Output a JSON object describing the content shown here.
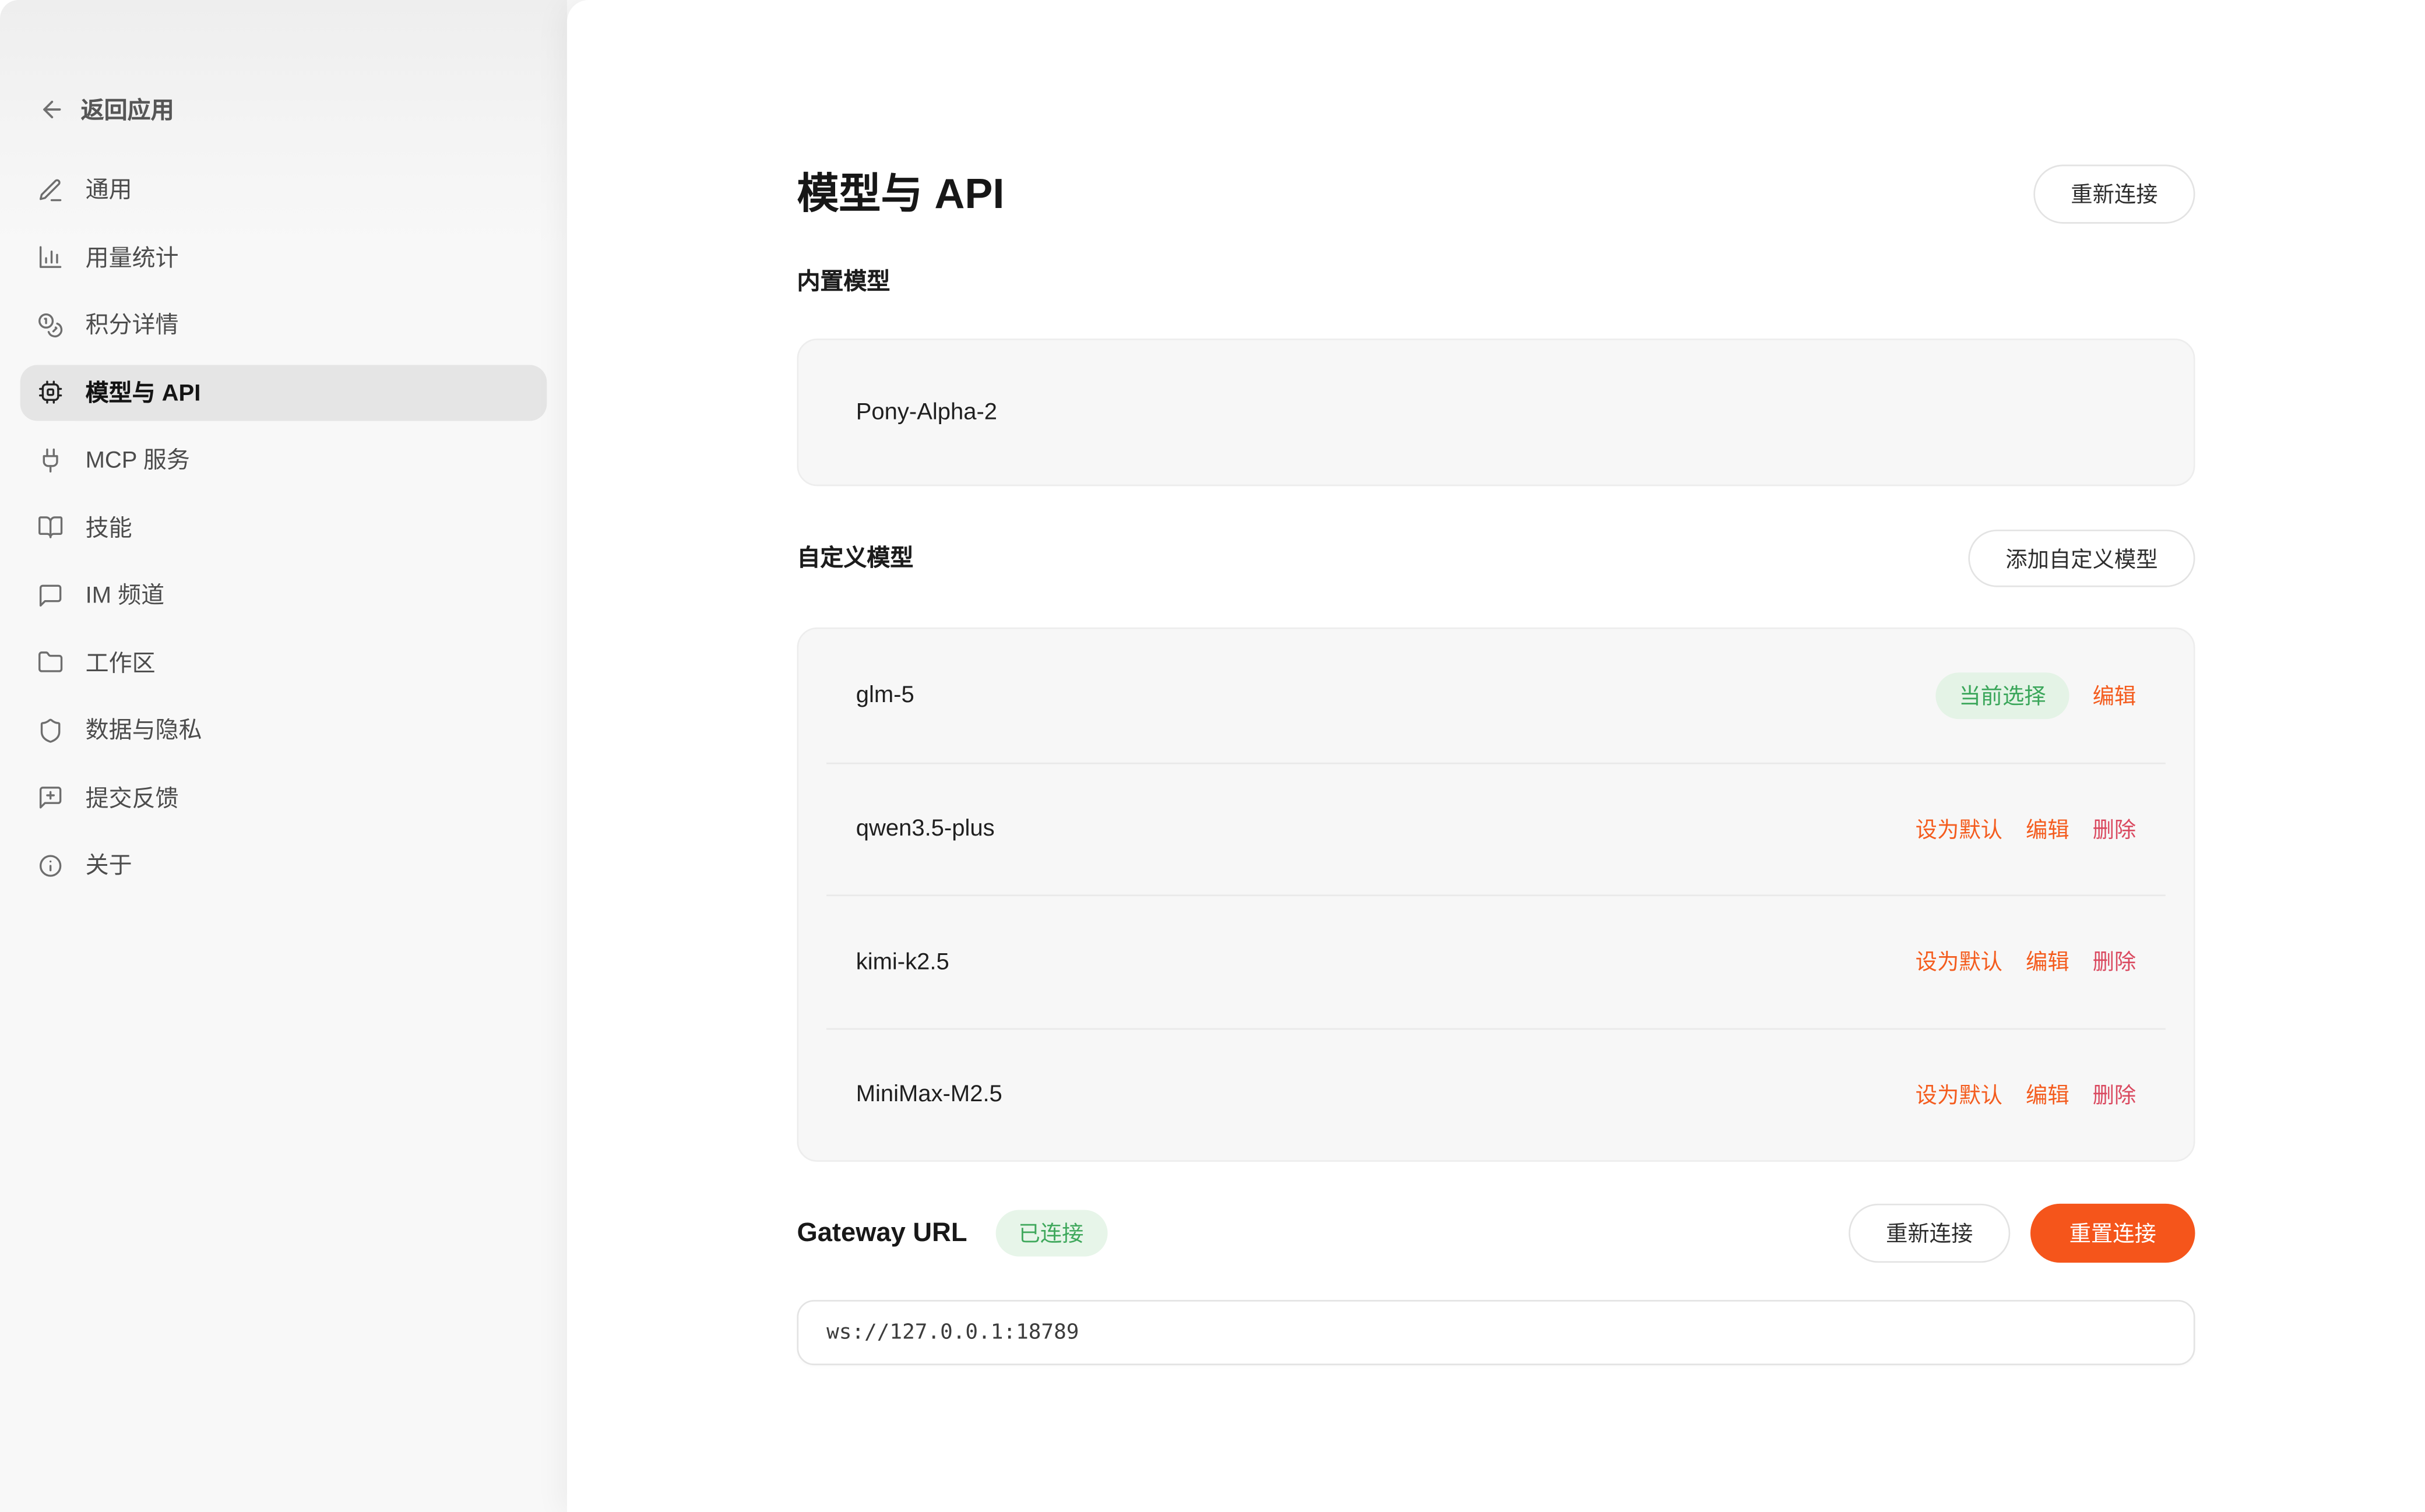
{
  "colors": {
    "accent_orange": "#f5551b",
    "link_orange": "#f45c1e",
    "danger_red": "#da4a60",
    "success_green": "#3aa65a",
    "success_bg": "#e4f3e6",
    "sidebar_bg": "#f4f4f4",
    "selected_pill_bg": "#e5e5e5"
  },
  "sidebar": {
    "back": {
      "label": "返回应用"
    },
    "items": [
      {
        "id": "general",
        "label": "通用",
        "icon": "pencil-icon"
      },
      {
        "id": "usage-stats",
        "label": "用量统计",
        "icon": "bar-chart-icon"
      },
      {
        "id": "credits",
        "label": "积分详情",
        "icon": "coins-icon"
      },
      {
        "id": "models-api",
        "label": "模型与 API",
        "icon": "chip-icon",
        "selected": true
      },
      {
        "id": "mcp-services",
        "label": "MCP 服务",
        "icon": "plug-icon"
      },
      {
        "id": "skills",
        "label": "技能",
        "icon": "book-open-icon"
      },
      {
        "id": "im-channels",
        "label": "IM 频道",
        "icon": "message-square-icon"
      },
      {
        "id": "workspace",
        "label": "工作区",
        "icon": "folder-icon"
      },
      {
        "id": "data-privacy",
        "label": "数据与隐私",
        "icon": "shield-icon"
      },
      {
        "id": "feedback",
        "label": "提交反馈",
        "icon": "feedback-plus-icon"
      },
      {
        "id": "about",
        "label": "关于",
        "icon": "info-icon"
      }
    ]
  },
  "main": {
    "title": "模型与 API",
    "reconnect_button": "重新连接",
    "builtin": {
      "heading": "内置模型",
      "models": [
        {
          "name": "Pony-Alpha-2"
        }
      ]
    },
    "custom": {
      "heading": "自定义模型",
      "add_button": "添加自定义模型",
      "models": [
        {
          "name": "glm-5",
          "badge": {
            "label": "当前选择"
          },
          "actions": [
            {
              "label": "编辑",
              "name": "edit",
              "type": "default"
            }
          ]
        },
        {
          "name": "qwen3.5-plus",
          "actions": [
            {
              "label": "设为默认",
              "name": "set-default",
              "type": "default"
            },
            {
              "label": "编辑",
              "name": "edit",
              "type": "default"
            },
            {
              "label": "删除",
              "name": "delete",
              "type": "danger"
            }
          ]
        },
        {
          "name": "kimi-k2.5",
          "actions": [
            {
              "label": "设为默认",
              "name": "set-default",
              "type": "default"
            },
            {
              "label": "编辑",
              "name": "edit",
              "type": "default"
            },
            {
              "label": "删除",
              "name": "delete",
              "type": "danger"
            }
          ]
        },
        {
          "name": "MiniMax-M2.5",
          "actions": [
            {
              "label": "设为默认",
              "name": "set-default",
              "type": "default"
            },
            {
              "label": "编辑",
              "name": "edit",
              "type": "default"
            },
            {
              "label": "删除",
              "name": "delete",
              "type": "danger"
            }
          ]
        }
      ]
    },
    "gateway": {
      "label": "Gateway URL",
      "status_badge": "已连接",
      "reconnect_button": "重新连接",
      "reset_button": "重置连接",
      "url_value": "ws://127.0.0.1:18789"
    }
  }
}
